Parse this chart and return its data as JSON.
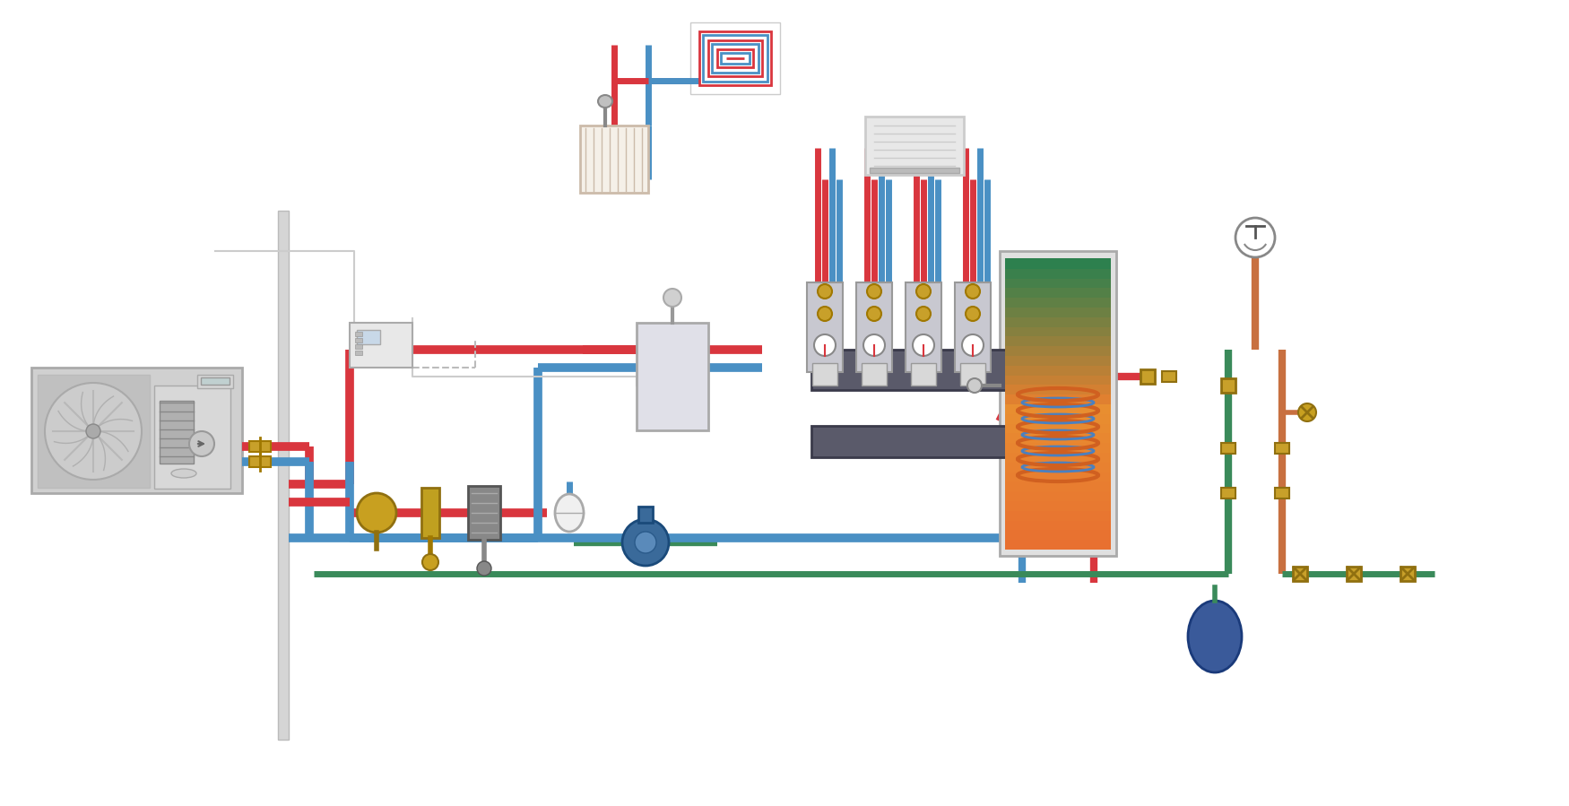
{
  "bg_color": "#ffffff",
  "red": "#d9363e",
  "blue": "#4a90c4",
  "gold": "#c8a02a",
  "dark_gray": "#555555",
  "light_gray": "#cccccc",
  "mid_gray": "#999999",
  "green": "#3a8a5a",
  "orange": "#e07020",
  "tank_orange": "#e87030",
  "tank_green": "#3a8a5a",
  "copper": "#c87040"
}
